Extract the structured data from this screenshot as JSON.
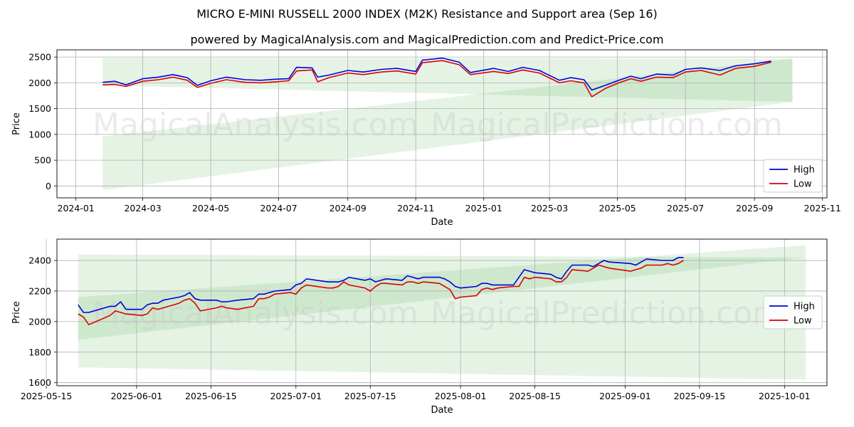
{
  "header": {
    "title": "MICRO E-MINI RUSSELL 2000 INDEX (M2K) Resistance and Support area (Sep 16)",
    "subtitle": "powered by MagicalAnalysis.com and MagicalPrediction.com and Predict-Price.com"
  },
  "watermark": {
    "left": "MagicalAnalysis.com",
    "right": "MagicalPrediction.com"
  },
  "colors": {
    "high": "#0000dd",
    "low": "#dd0000",
    "band": "#2ca02c",
    "grid": "#b0b0b0"
  },
  "chart_data": [
    {
      "type": "line",
      "name": "full-range",
      "xlabel": "Date",
      "ylabel": "Price",
      "xlim": [
        "2023-12-15",
        "2025-11-05"
      ],
      "ylim": [
        -230,
        2640
      ],
      "xticks": [
        "2024-01",
        "2024-03",
        "2024-05",
        "2024-07",
        "2024-09",
        "2024-11",
        "2025-01",
        "2025-03",
        "2025-05",
        "2025-07",
        "2025-09",
        "2025-11"
      ],
      "yticks": [
        0,
        500,
        1000,
        1500,
        2000,
        2500
      ],
      "grid": true,
      "legend": {
        "position": "lower-right",
        "entries": [
          "High",
          "Low"
        ]
      },
      "bands": [
        {
          "x": [
            "2024-01-25",
            "2025-10-05"
          ],
          "upper": [
            2480,
            2470
          ],
          "lower": [
            1950,
            1630
          ]
        },
        {
          "x": [
            "2024-01-25",
            "2025-10-05"
          ],
          "upper": [
            960,
            2470
          ],
          "lower": [
            -80,
            1630
          ]
        }
      ],
      "series": [
        {
          "name": "High",
          "x": [
            "2024-01-25",
            "2024-02-05",
            "2024-02-15",
            "2024-03-01",
            "2024-03-15",
            "2024-03-28",
            "2024-04-10",
            "2024-04-19",
            "2024-05-01",
            "2024-05-15",
            "2024-06-01",
            "2024-06-15",
            "2024-06-28",
            "2024-07-10",
            "2024-07-17",
            "2024-07-31",
            "2024-08-05",
            "2024-08-15",
            "2024-09-01",
            "2024-09-15",
            "2024-10-01",
            "2024-10-15",
            "2024-11-01",
            "2024-11-07",
            "2024-11-25",
            "2024-12-10",
            "2024-12-20",
            "2025-01-10",
            "2025-01-23",
            "2025-02-05",
            "2025-02-20",
            "2025-03-10",
            "2025-03-20",
            "2025-04-01",
            "2025-04-08",
            "2025-04-20",
            "2025-05-01",
            "2025-05-13",
            "2025-05-22",
            "2025-06-05",
            "2025-06-20",
            "2025-07-01",
            "2025-07-15",
            "2025-08-01",
            "2025-08-15",
            "2025-09-01",
            "2025-09-16"
          ],
          "values": [
            2010,
            2030,
            1960,
            2080,
            2110,
            2160,
            2100,
            1950,
            2040,
            2110,
            2060,
            2050,
            2070,
            2080,
            2300,
            2290,
            2110,
            2150,
            2240,
            2210,
            2260,
            2280,
            2220,
            2440,
            2480,
            2400,
            2200,
            2280,
            2220,
            2300,
            2240,
            2050,
            2100,
            2060,
            1860,
            1950,
            2040,
            2130,
            2080,
            2170,
            2150,
            2260,
            2290,
            2240,
            2330,
            2370,
            2420
          ]
        },
        {
          "name": "Low",
          "x": [
            "2024-01-25",
            "2024-02-05",
            "2024-02-15",
            "2024-03-01",
            "2024-03-15",
            "2024-03-28",
            "2024-04-10",
            "2024-04-19",
            "2024-05-01",
            "2024-05-15",
            "2024-06-01",
            "2024-06-15",
            "2024-06-28",
            "2024-07-10",
            "2024-07-17",
            "2024-07-31",
            "2024-08-05",
            "2024-08-15",
            "2024-09-01",
            "2024-09-15",
            "2024-10-01",
            "2024-10-15",
            "2024-11-01",
            "2024-11-07",
            "2024-11-25",
            "2024-12-10",
            "2024-12-20",
            "2025-01-10",
            "2025-01-23",
            "2025-02-05",
            "2025-02-20",
            "2025-03-10",
            "2025-03-20",
            "2025-04-01",
            "2025-04-08",
            "2025-04-20",
            "2025-05-01",
            "2025-05-13",
            "2025-05-22",
            "2025-06-05",
            "2025-06-20",
            "2025-07-01",
            "2025-07-15",
            "2025-08-01",
            "2025-08-15",
            "2025-09-01",
            "2025-09-16"
          ],
          "values": [
            1960,
            1970,
            1930,
            2030,
            2060,
            2110,
            2050,
            1910,
            1990,
            2060,
            2010,
            2000,
            2020,
            2040,
            2230,
            2250,
            2020,
            2100,
            2190,
            2160,
            2210,
            2230,
            2170,
            2390,
            2430,
            2350,
            2160,
            2220,
            2180,
            2250,
            2190,
            2000,
            2040,
            2000,
            1730,
            1890,
            1990,
            2080,
            2030,
            2110,
            2100,
            2210,
            2240,
            2150,
            2280,
            2320,
            2400
          ]
        }
      ]
    },
    {
      "type": "line",
      "name": "zoomed-range",
      "xlabel": "Date",
      "ylabel": "Price",
      "xlim": [
        "2025-05-17",
        "2025-10-09"
      ],
      "ylim": [
        1580,
        2540
      ],
      "xticks": [
        "2025-05-15",
        "2025-06-01",
        "2025-06-15",
        "2025-07-01",
        "2025-07-15",
        "2025-08-01",
        "2025-08-15",
        "2025-09-01",
        "2025-09-15",
        "2025-10-01"
      ],
      "yticks": [
        1600,
        1800,
        2000,
        2200,
        2400
      ],
      "grid": true,
      "legend": {
        "position": "center-right",
        "entries": [
          "High",
          "Low"
        ]
      },
      "bands": [
        {
          "x": [
            "2025-05-21",
            "2025-10-05"
          ],
          "upper": [
            2440,
            2420
          ],
          "lower": [
            1700,
            1620
          ]
        },
        {
          "x": [
            "2025-05-21",
            "2025-10-05"
          ],
          "upper": [
            2160,
            2500
          ],
          "lower": [
            1880,
            2420
          ]
        }
      ],
      "series": [
        {
          "name": "High",
          "x": [
            "2025-05-21",
            "2025-05-22",
            "2025-05-23",
            "2025-05-27",
            "2025-05-28",
            "2025-05-29",
            "2025-05-30",
            "2025-06-02",
            "2025-06-03",
            "2025-06-04",
            "2025-06-05",
            "2025-06-06",
            "2025-06-09",
            "2025-06-10",
            "2025-06-11",
            "2025-06-12",
            "2025-06-13",
            "2025-06-16",
            "2025-06-17",
            "2025-06-18",
            "2025-06-20",
            "2025-06-23",
            "2025-06-24",
            "2025-06-25",
            "2025-06-26",
            "2025-06-27",
            "2025-06-30",
            "2025-07-01",
            "2025-07-02",
            "2025-07-03",
            "2025-07-07",
            "2025-07-08",
            "2025-07-09",
            "2025-07-10",
            "2025-07-11",
            "2025-07-14",
            "2025-07-15",
            "2025-07-16",
            "2025-07-17",
            "2025-07-18",
            "2025-07-21",
            "2025-07-22",
            "2025-07-23",
            "2025-07-24",
            "2025-07-25",
            "2025-07-28",
            "2025-07-29",
            "2025-07-30",
            "2025-07-31",
            "2025-08-01",
            "2025-08-04",
            "2025-08-05",
            "2025-08-06",
            "2025-08-07",
            "2025-08-08",
            "2025-08-11",
            "2025-08-12",
            "2025-08-13",
            "2025-08-14",
            "2025-08-15",
            "2025-08-18",
            "2025-08-19",
            "2025-08-20",
            "2025-08-21",
            "2025-08-22",
            "2025-08-25",
            "2025-08-26",
            "2025-08-27",
            "2025-08-28",
            "2025-08-29",
            "2025-09-02",
            "2025-09-03",
            "2025-09-04",
            "2025-09-05",
            "2025-09-08",
            "2025-09-09",
            "2025-09-10",
            "2025-09-11",
            "2025-09-12"
          ],
          "values": [
            2110,
            2060,
            2060,
            2100,
            2100,
            2130,
            2080,
            2080,
            2110,
            2120,
            2120,
            2140,
            2160,
            2170,
            2190,
            2150,
            2140,
            2140,
            2130,
            2130,
            2140,
            2150,
            2180,
            2180,
            2190,
            2200,
            2210,
            2240,
            2250,
            2280,
            2260,
            2260,
            2260,
            2270,
            2290,
            2270,
            2280,
            2260,
            2270,
            2280,
            2270,
            2300,
            2290,
            2280,
            2290,
            2290,
            2280,
            2260,
            2230,
            2220,
            2230,
            2250,
            2250,
            2240,
            2240,
            2240,
            2290,
            2340,
            2330,
            2320,
            2310,
            2290,
            2280,
            2330,
            2370,
            2370,
            2360,
            2380,
            2400,
            2390,
            2380,
            2370,
            2390,
            2410,
            2400,
            2400,
            2400,
            2420,
            2420
          ]
        },
        {
          "name": "Low",
          "x": [
            "2025-05-21",
            "2025-05-22",
            "2025-05-23",
            "2025-05-27",
            "2025-05-28",
            "2025-05-29",
            "2025-05-30",
            "2025-06-02",
            "2025-06-03",
            "2025-06-04",
            "2025-06-05",
            "2025-06-06",
            "2025-06-09",
            "2025-06-10",
            "2025-06-11",
            "2025-06-12",
            "2025-06-13",
            "2025-06-16",
            "2025-06-17",
            "2025-06-18",
            "2025-06-20",
            "2025-06-23",
            "2025-06-24",
            "2025-06-25",
            "2025-06-26",
            "2025-06-27",
            "2025-06-30",
            "2025-07-01",
            "2025-07-02",
            "2025-07-03",
            "2025-07-07",
            "2025-07-08",
            "2025-07-09",
            "2025-07-10",
            "2025-07-11",
            "2025-07-14",
            "2025-07-15",
            "2025-07-16",
            "2025-07-17",
            "2025-07-18",
            "2025-07-21",
            "2025-07-22",
            "2025-07-23",
            "2025-07-24",
            "2025-07-25",
            "2025-07-28",
            "2025-07-29",
            "2025-07-30",
            "2025-07-31",
            "2025-08-01",
            "2025-08-04",
            "2025-08-05",
            "2025-08-06",
            "2025-08-07",
            "2025-08-08",
            "2025-08-11",
            "2025-08-12",
            "2025-08-13",
            "2025-08-14",
            "2025-08-15",
            "2025-08-18",
            "2025-08-19",
            "2025-08-20",
            "2025-08-21",
            "2025-08-22",
            "2025-08-25",
            "2025-08-26",
            "2025-08-27",
            "2025-08-28",
            "2025-08-29",
            "2025-09-02",
            "2025-09-03",
            "2025-09-04",
            "2025-09-05",
            "2025-09-08",
            "2025-09-09",
            "2025-09-10",
            "2025-09-11",
            "2025-09-12"
          ],
          "values": [
            2050,
            2030,
            1980,
            2040,
            2070,
            2060,
            2050,
            2040,
            2050,
            2090,
            2080,
            2090,
            2120,
            2140,
            2150,
            2120,
            2070,
            2090,
            2100,
            2090,
            2080,
            2100,
            2150,
            2150,
            2160,
            2180,
            2190,
            2180,
            2220,
            2240,
            2220,
            2220,
            2230,
            2260,
            2240,
            2220,
            2200,
            2230,
            2250,
            2250,
            2240,
            2260,
            2260,
            2250,
            2260,
            2250,
            2230,
            2210,
            2150,
            2160,
            2170,
            2210,
            2220,
            2210,
            2220,
            2230,
            2230,
            2290,
            2280,
            2290,
            2280,
            2260,
            2260,
            2290,
            2340,
            2330,
            2350,
            2370,
            2360,
            2350,
            2330,
            2340,
            2350,
            2370,
            2370,
            2380,
            2370,
            2380,
            2400
          ]
        }
      ]
    }
  ]
}
